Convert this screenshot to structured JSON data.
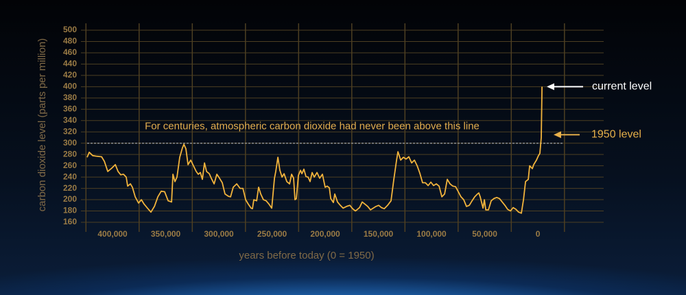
{
  "chart_data": {
    "type": "line",
    "y_label": "carbon dioxide level (parts per million)",
    "x_label": "years before today (0 = 1950)",
    "xlim": [
      423900,
      -61900
    ],
    "xticks": [
      {
        "value": 400000,
        "label": "400,000"
      },
      {
        "value": 350000,
        "label": "350,000"
      },
      {
        "value": 300000,
        "label": "300,000"
      },
      {
        "value": 250000,
        "label": "250,000"
      },
      {
        "value": 200000,
        "label": "200,000"
      },
      {
        "value": 150000,
        "label": "150,000"
      },
      {
        "value": 100000,
        "label": "100,000"
      },
      {
        "value": 50000,
        "label": "50,000"
      },
      0
    ],
    "ylim": [
      160,
      500
    ],
    "yticks": [
      160,
      180,
      200,
      220,
      240,
      260,
      280,
      300,
      320,
      340,
      360,
      380,
      400,
      420,
      440,
      460,
      480,
      500
    ],
    "grid": true,
    "threshold": {
      "value": 300,
      "label": "For centuries, atmospheric carbon dioxide had never been above this line"
    },
    "annotations": [
      {
        "text": "current level",
        "value": 400,
        "color": "#ffffff"
      },
      {
        "text": "1950 level",
        "value": 315,
        "color": "#e8b04a"
      }
    ],
    "series": [
      {
        "color": "#f2b43c",
        "x": [
          423900,
          421900,
          418700,
          415500,
          410300,
          407700,
          404500,
          400600,
          397400,
          394800,
          392300,
          389700,
          387100,
          385800,
          383200,
          381300,
          378700,
          375500,
          372900,
          370300,
          367100,
          363900,
          360600,
          357400,
          354200,
          351000,
          347700,
          344500,
          343200,
          341300,
          339400,
          336800,
          334200,
          332900,
          331000,
          329000,
          326500,
          323900,
          321300,
          319400,
          317400,
          315500,
          313500,
          311600,
          309000,
          307100,
          304500,
          301900,
          299400,
          296800,
          294200,
          291000,
          289000,
          286500,
          283200,
          280000,
          277400,
          274800,
          272300,
          269700,
          268400,
          267100,
          264500,
          262600,
          260600,
          258100,
          255500,
          252900,
          250300,
          247700,
          246500,
          244500,
          242600,
          240600,
          238700,
          236100,
          233500,
          231600,
          229700,
          228400,
          227100,
          225200,
          223200,
          221900,
          220000,
          218100,
          216100,
          214200,
          212300,
          210300,
          207700,
          205200,
          202600,
          200000,
          198100,
          196100,
          194800,
          192300,
          191000,
          188400,
          185800,
          183200,
          180000,
          176800,
          174200,
          171600,
          170300,
          167700,
          165200,
          162600,
          160000,
          157400,
          154800,
          152300,
          149700,
          147100,
          144500,
          141300,
          138100,
          135500,
          132900,
          131600,
          129000,
          126500,
          123900,
          121300,
          118700,
          116100,
          113500,
          111000,
          108400,
          105800,
          103200,
          100600,
          98100,
          95500,
          92900,
          90300,
          87700,
          85200,
          82600,
          80000,
          77400,
          74800,
          72300,
          69700,
          67100,
          64500,
          61900,
          59400,
          56800,
          55500,
          54200,
          51600,
          50300,
          49000,
          46500,
          43900,
          41300,
          38700,
          36100,
          33500,
          31000,
          28400,
          25800,
          23200,
          20600,
          18100,
          15500,
          13500,
          11600,
          9000,
          7700,
          5200,
          3900,
          1300,
          -600,
          -1900,
          -3200,
          -3900
        ],
        "values": [
          275,
          284,
          278,
          277,
          276,
          268,
          250,
          256,
          262,
          250,
          244,
          245,
          240,
          224,
          228,
          222,
          205,
          194,
          200,
          192,
          185,
          178,
          188,
          205,
          215,
          214,
          198,
          196,
          245,
          232,
          240,
          275,
          292,
          298,
          290,
          262,
          270,
          260,
          250,
          245,
          248,
          236,
          265,
          250,
          246,
          238,
          228,
          245,
          238,
          230,
          210,
          206,
          205,
          222,
          228,
          220,
          220,
          200,
          192,
          185,
          184,
          200,
          198,
          222,
          210,
          200,
          198,
          192,
          185,
          238,
          250,
          275,
          252,
          240,
          246,
          232,
          228,
          245,
          238,
          200,
          202,
          243,
          252,
          246,
          254,
          241,
          240,
          232,
          248,
          240,
          248,
          238,
          245,
          222,
          224,
          221,
          202,
          195,
          210,
          196,
          190,
          185,
          188,
          190,
          184,
          180,
          182,
          186,
          196,
          192,
          188,
          182,
          185,
          188,
          190,
          186,
          184,
          190,
          198,
          235,
          270,
          285,
          270,
          275,
          272,
          276,
          265,
          270,
          260,
          247,
          230,
          230,
          225,
          231,
          225,
          228,
          224,
          205,
          210,
          236,
          228,
          224,
          223,
          214,
          205,
          200,
          188,
          190,
          198,
          205,
          210,
          212,
          205,
          185,
          200,
          182,
          182,
          198,
          202,
          204,
          202,
          196,
          190,
          183,
          180,
          186,
          183,
          178,
          176,
          200,
          232,
          236,
          260,
          255,
          262,
          270,
          278,
          282,
          310,
          400
        ]
      }
    ]
  }
}
